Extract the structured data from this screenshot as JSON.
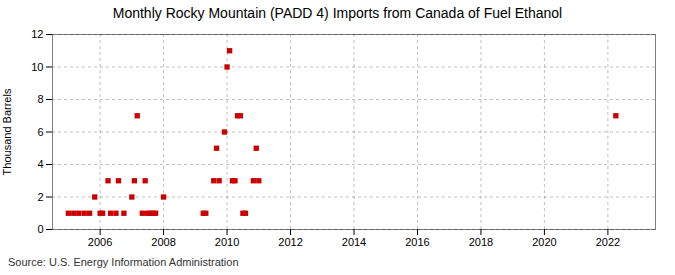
{
  "chart_data": {
    "type": "scatter",
    "title": "Monthly Rocky Mountain (PADD 4) Imports from Canada of Fuel Ethanol",
    "ylabel": "Thousand Barrels",
    "caption": "Source: U.S. Energy Information Administration",
    "color": "#cc0000",
    "marker": "square",
    "grid": true,
    "xlim": [
      2004.5,
      2023.5
    ],
    "ylim": [
      0,
      12
    ],
    "xticks": [
      2006,
      2008,
      2010,
      2012,
      2014,
      2016,
      2018,
      2020,
      2022
    ],
    "yticks": [
      0,
      2,
      4,
      6,
      8,
      10,
      12
    ],
    "x": [
      2005.0,
      2005.17,
      2005.33,
      2005.5,
      2005.67,
      2005.83,
      2006.0,
      2006.08,
      2006.25,
      2006.33,
      2006.5,
      2006.58,
      2006.75,
      2007.0,
      2007.08,
      2007.17,
      2007.33,
      2007.42,
      2007.5,
      2007.58,
      2007.67,
      2007.75,
      2008.0,
      2009.25,
      2009.33,
      2009.58,
      2009.67,
      2009.75,
      2009.92,
      2010.0,
      2010.08,
      2010.17,
      2010.25,
      2010.33,
      2010.42,
      2010.5,
      2010.58,
      2010.83,
      2010.92,
      2011.0,
      2022.25
    ],
    "values": [
      1,
      1,
      1,
      1,
      1,
      2,
      1,
      1,
      3,
      1,
      1,
      3,
      1,
      2,
      3,
      7,
      1,
      3,
      1,
      1,
      1,
      1,
      2,
      1,
      1,
      3,
      5,
      3,
      6,
      10,
      11,
      3,
      3,
      7,
      7,
      1,
      1,
      3,
      5,
      3,
      7
    ]
  }
}
